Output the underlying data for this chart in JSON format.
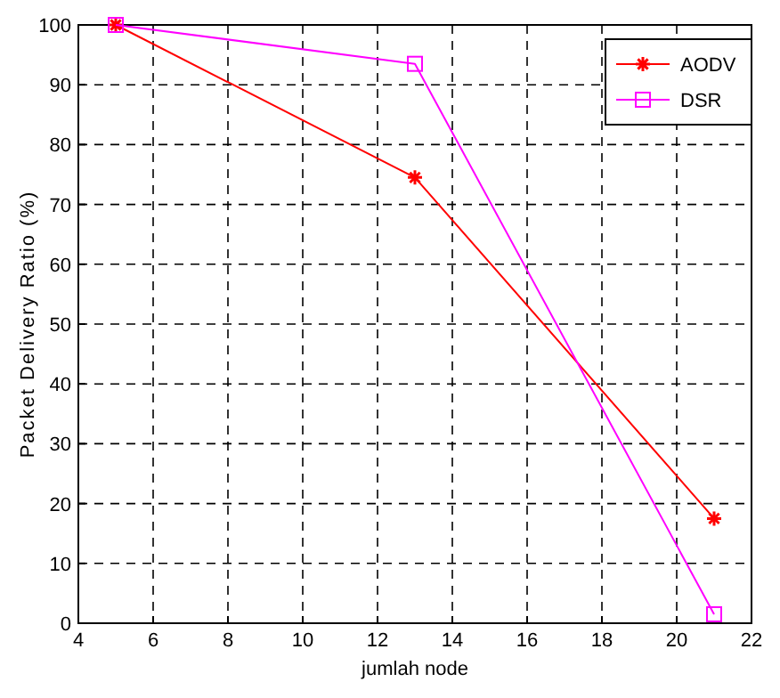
{
  "chart_data": {
    "type": "line",
    "xlabel": "jumlah node",
    "ylabel": "Packet Delivery Ratio (%)",
    "x": [
      5,
      13,
      21
    ],
    "series": [
      {
        "name": "AODV",
        "color": "#ff0000",
        "marker": "cross",
        "values": [
          100,
          74.5,
          17.5
        ]
      },
      {
        "name": "DSR",
        "color": "#ff00ff",
        "marker": "square",
        "values": [
          100,
          93.5,
          1.5
        ]
      }
    ],
    "xlim": [
      4,
      22
    ],
    "xticks": [
      4,
      6,
      8,
      10,
      12,
      14,
      16,
      18,
      20,
      22
    ],
    "ylim": [
      0,
      100
    ],
    "yticks": [
      0,
      10,
      20,
      30,
      40,
      50,
      60,
      70,
      80,
      90,
      100
    ],
    "grid": true,
    "line_style": "solid",
    "legend": "top right"
  }
}
